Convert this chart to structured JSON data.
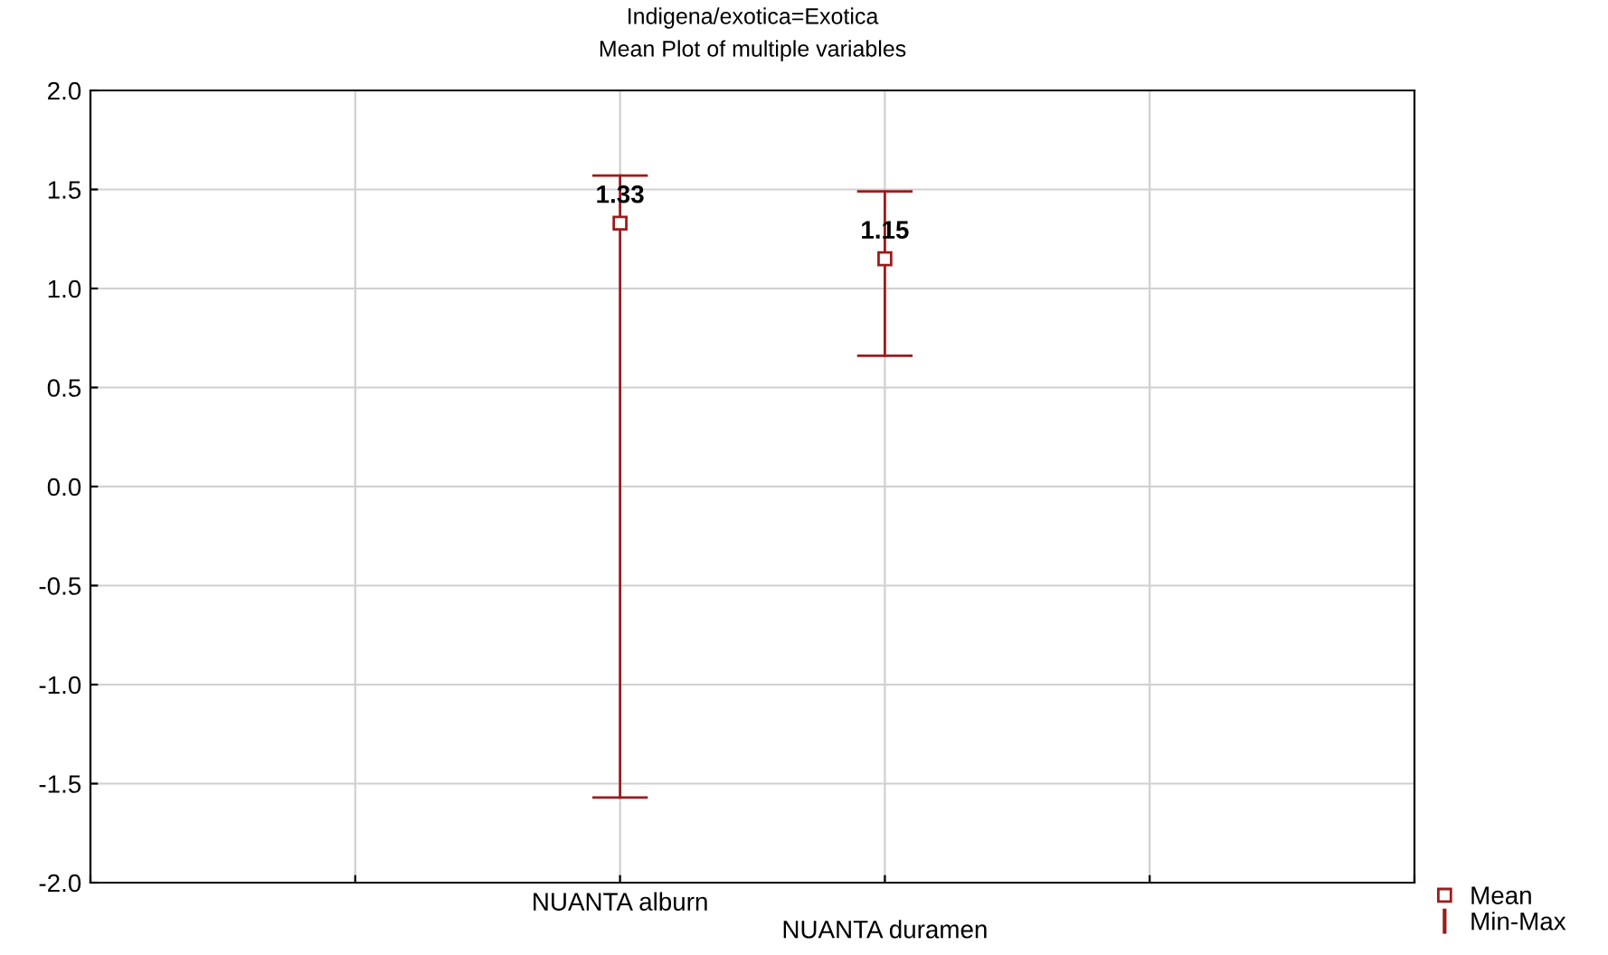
{
  "chart_data": {
    "type": "scatter",
    "title": "Indigena/exotica=Exotica",
    "subtitle": "Mean Plot of multiple variables",
    "categories": [
      "NUANTA alburn",
      "NUANTA duramen"
    ],
    "series": [
      {
        "name": "Mean",
        "color": "#9b1c1c",
        "values": [
          1.33,
          1.15
        ],
        "errors": [
          [
            -1.57,
            1.57
          ],
          [
            0.66,
            1.49
          ]
        ]
      }
    ],
    "annotations": [
      "Min-Max"
    ],
    "ylim": [
      -2.0,
      2.0
    ],
    "yticks": [
      {
        "value": -2,
        "label": "-2.0"
      },
      {
        "value": -1.5,
        "label": "-1.5"
      },
      {
        "value": -1,
        "label": "-1.0"
      },
      {
        "value": -0.5,
        "label": "-0.5"
      },
      {
        "value": 0,
        "label": "0.0"
      },
      {
        "value": 0.5,
        "label": "0.5"
      },
      {
        "value": 1,
        "label": "1.0"
      },
      {
        "value": 1.5,
        "label": "1.5"
      },
      {
        "value": 2,
        "label": "2.0"
      }
    ],
    "grid": true,
    "legend": "bottom right",
    "marker": "square",
    "data_labels": true
  }
}
